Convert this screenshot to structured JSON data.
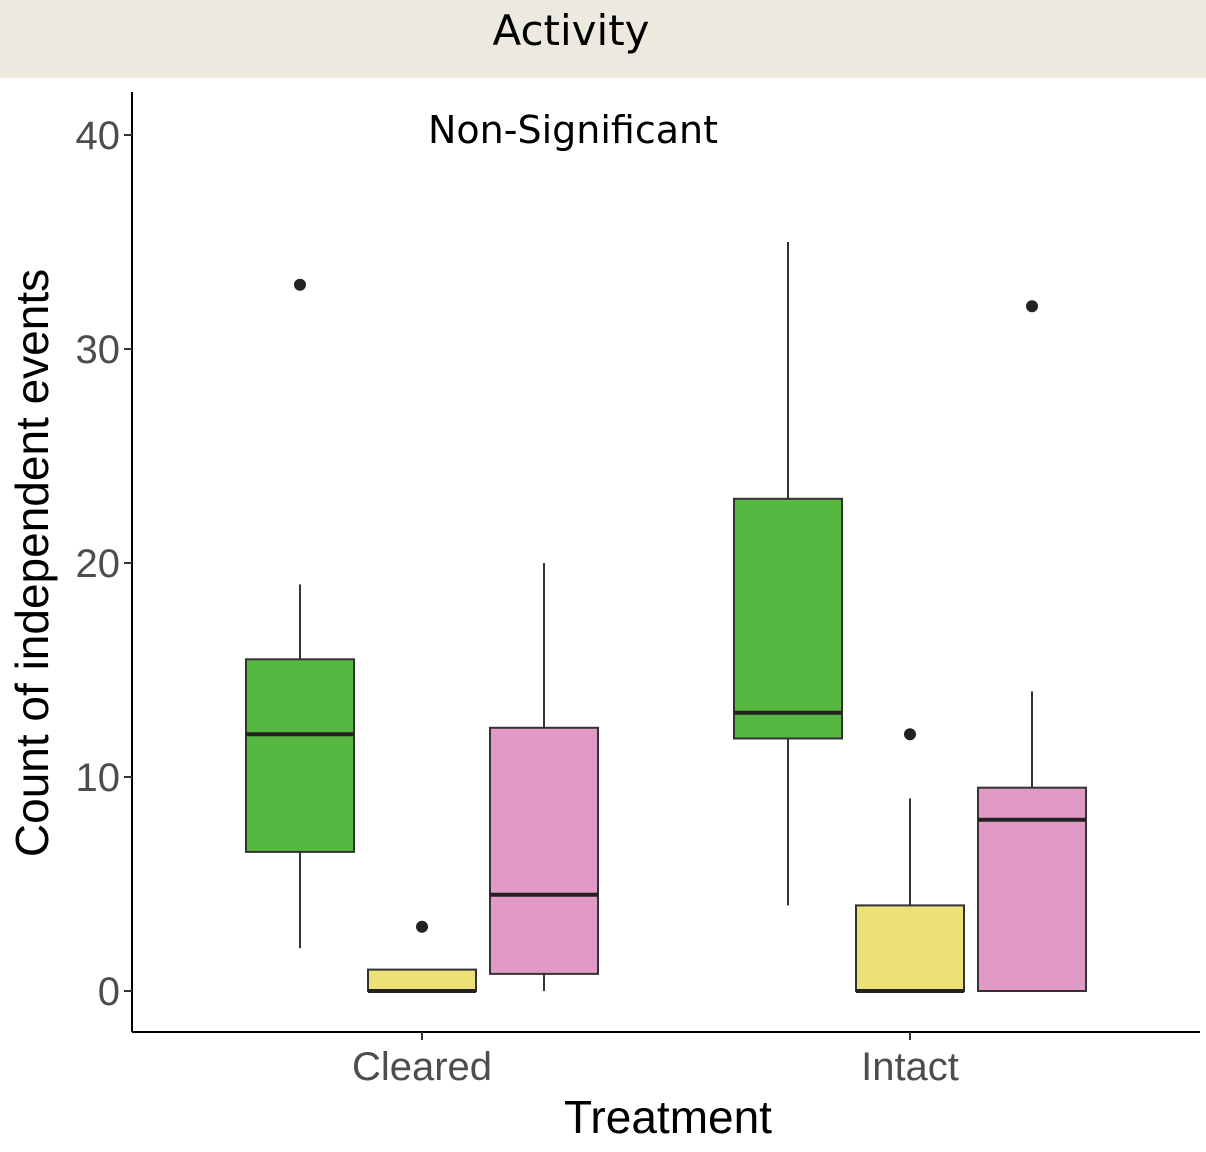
{
  "header": {
    "title": "Activity"
  },
  "chart_data": {
    "type": "box",
    "annotation": "Non-Significant",
    "xlabel": "Treatment",
    "ylabel": "Count of independent events",
    "categories": [
      "Cleared",
      "Intact"
    ],
    "ylim": [
      -2,
      42
    ],
    "yticks": [
      0,
      10,
      20,
      30,
      40
    ],
    "grid": false,
    "legend": "none",
    "series": [
      {
        "color": "#56b741",
        "boxes": [
          {
            "category": "Cleared",
            "min": 2,
            "q1": 6.5,
            "median": 12,
            "q3": 15.5,
            "max": 19,
            "outliers": [
              33
            ]
          },
          {
            "category": "Intact",
            "min": 4,
            "q1": 11.8,
            "median": 13,
            "q3": 23,
            "max": 35,
            "outliers": []
          }
        ]
      },
      {
        "color": "#ebe177",
        "boxes": [
          {
            "category": "Cleared",
            "min": 0,
            "q1": 0,
            "median": 0,
            "q3": 1,
            "max": 1,
            "outliers": [
              3
            ]
          },
          {
            "category": "Intact",
            "min": 0,
            "q1": 0,
            "median": 0,
            "q3": 4,
            "max": 9,
            "outliers": [
              12
            ]
          }
        ]
      },
      {
        "color": "#e19ac5",
        "boxes": [
          {
            "category": "Cleared",
            "min": 0,
            "q1": 0.8,
            "median": 4.5,
            "q3": 12.3,
            "max": 20,
            "outliers": []
          },
          {
            "category": "Intact",
            "min": 0,
            "q1": 0,
            "median": 8,
            "q3": 9.5,
            "max": 14,
            "outliers": [
              32
            ]
          }
        ]
      }
    ]
  }
}
